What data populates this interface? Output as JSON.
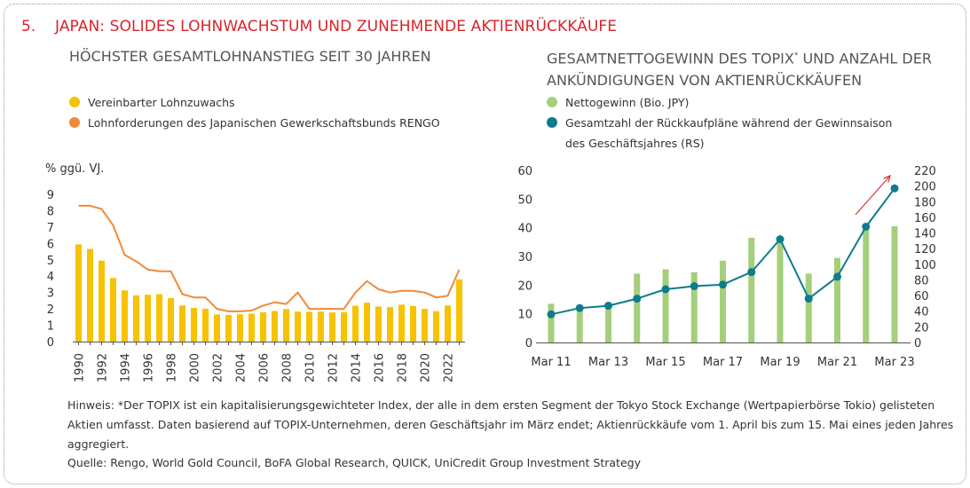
{
  "header": {
    "number": "5.",
    "title": "JAPAN: SOLIDES LOHNWACHSTUM UND ZUNEHMENDE AKTIENRÜCKKÄUFE"
  },
  "left_panel": {
    "title": "HÖCHSTER GESAMTLOHNANSTIEG SEIT 30 JAHREN",
    "legend": [
      {
        "label": "Vereinbarter Lohnzuwachs",
        "color": "#f7c200"
      },
      {
        "label": "Lohnforderungen des Japanischen Gewerkschaftsbunds RENGO",
        "color": "#f08a3a"
      }
    ]
  },
  "right_panel": {
    "title_line1_a": "GESAMTNETTOGEWINN DES TOPIX",
    "title_line1_sup": "*",
    "title_line1_b": " UND ANZAHL DER",
    "title_line2": "ANKÜNDIGUNGEN VON AKTIENRÜCKKÄUFEN",
    "legend": [
      {
        "label": "Nettogewinn (Bio. JPY)",
        "color": "#a5cf7d"
      },
      {
        "label": "Gesamtzahl der Rückkaufpläne während der Gewinnsaison",
        "label2": "des Geschäftsjahres (RS)",
        "color": "#0e7c8c"
      }
    ]
  },
  "chart_data": [
    {
      "type": "bar",
      "ylabel": "% ggü. VJ.",
      "ylim": [
        0,
        9
      ],
      "yticks": [
        "0",
        "1",
        "2",
        "3",
        "4",
        "5",
        "6",
        "7",
        "8",
        "9"
      ],
      "xtick_labels": [
        "1990",
        "1992",
        "1994",
        "1996",
        "1998",
        "2000",
        "2002",
        "2004",
        "2006",
        "2008",
        "2010",
        "2012",
        "2014",
        "2016",
        "2018",
        "2020",
        "2022"
      ],
      "grid": false,
      "categories": [
        1990,
        1991,
        1992,
        1993,
        1994,
        1995,
        1996,
        1997,
        1998,
        1999,
        2000,
        2001,
        2002,
        2003,
        2004,
        2005,
        2006,
        2007,
        2008,
        2009,
        2010,
        2011,
        2012,
        2013,
        2014,
        2015,
        2016,
        2017,
        2018,
        2019,
        2020,
        2021,
        2022,
        2023
      ],
      "series": [
        {
          "name": "Vereinbarter Lohnzuwachs",
          "type": "bar",
          "color": "#f7c200",
          "values": [
            5.94,
            5.66,
            4.95,
            3.89,
            3.13,
            2.83,
            2.86,
            2.9,
            2.66,
            2.21,
            2.06,
            2.01,
            1.66,
            1.63,
            1.67,
            1.71,
            1.79,
            1.87,
            1.99,
            1.83,
            1.82,
            1.83,
            1.78,
            1.8,
            2.19,
            2.38,
            2.14,
            2.11,
            2.26,
            2.18,
            2.0,
            1.86,
            2.2,
            3.8
          ]
        },
        {
          "name": "Lohnforderungen des Japanischen Gewerkschaftsbunds RENGO",
          "type": "line",
          "color": "#f08a3a",
          "values": [
            8.3,
            8.3,
            8.1,
            7.1,
            5.3,
            4.9,
            4.4,
            4.3,
            4.3,
            2.9,
            2.7,
            2.7,
            2.0,
            1.85,
            1.85,
            1.9,
            2.2,
            2.4,
            2.3,
            3.0,
            2.0,
            2.0,
            2.0,
            2.0,
            3.0,
            3.7,
            3.2,
            3.0,
            3.1,
            3.1,
            3.0,
            2.7,
            2.8,
            4.4
          ]
        }
      ]
    },
    {
      "type": "bar",
      "ylim": [
        0,
        60
      ],
      "y2lim": [
        0,
        220
      ],
      "yticks": [
        "0",
        "10",
        "20",
        "30",
        "40",
        "50",
        "60"
      ],
      "y2ticks": [
        "0",
        "20",
        "40",
        "60",
        "80",
        "100",
        "120",
        "140",
        "160",
        "180",
        "200",
        "220"
      ],
      "grid": false,
      "categories": [
        "Mar 11",
        "Mar 12",
        "Mar 13",
        "Mar 14",
        "Mar 15",
        "Mar 16",
        "Mar 17",
        "Mar 18",
        "Mar 19",
        "Mar 20",
        "Mar 21",
        "Mar 22",
        "Mar 23"
      ],
      "xtick_labels": [
        "Mar 11",
        "Mar 13",
        "Mar 15",
        "Mar 17",
        "Mar 19",
        "Mar 21",
        "Mar 23"
      ],
      "series": [
        {
          "name": "Nettogewinn (Bio. JPY)",
          "type": "bar",
          "axis": "left",
          "color": "#a5cf7d",
          "values": [
            13.5,
            11.5,
            13.5,
            24,
            25.5,
            24.5,
            28.5,
            36.5,
            35.5,
            24,
            29.5,
            39.5,
            40.5
          ]
        },
        {
          "name": "Gesamtzahl der Rückkaufpläne während der Gewinnsaison des Geschäftsjahres (RS)",
          "type": "line",
          "axis": "right",
          "color": "#0e7c8c",
          "values": [
            36,
            44,
            47,
            56,
            68,
            72,
            74,
            90,
            132,
            56,
            84,
            148,
            197
          ]
        }
      ]
    }
  ],
  "footer": {
    "note": "Hinweis: *Der TOPIX ist ein kapitalisierungsgewichteter Index, der alle in dem ersten Segment der Tokyo Stock Exchange (Wertpapierbörse Tokio) gelisteten Aktien umfasst. Daten basierend auf TOPIX-Unternehmen, deren Geschäftsjahr im März endet; Aktienrückkäufe vom 1. April bis zum 15. Mai eines jeden Jahres aggregiert.",
    "source": "Quelle: Rengo, World Gold Council, BoFA Global Research, QUICK, UniCredit Group Investment Strategy"
  }
}
